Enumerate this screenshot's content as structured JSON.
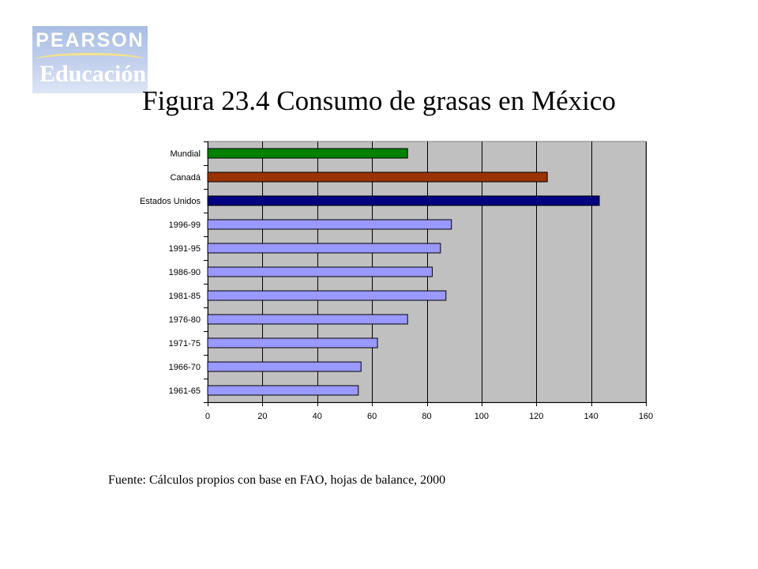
{
  "logo": {
    "brand": "PEARSON",
    "subbrand": "Educación"
  },
  "title": "Figura 23.4 Consumo de grasas en México",
  "source": "Fuente: Cálculos propios con base en FAO, hojas de balance, 2000",
  "chart_data": {
    "type": "bar",
    "orientation": "horizontal",
    "categories": [
      "Mundial",
      "Canadá",
      "Estados Unidos",
      "1996-99",
      "1991-95",
      "1986-90",
      "1981-85",
      "1976-80",
      "1971-75",
      "1966-70",
      "1961-65"
    ],
    "values": [
      73,
      124,
      143,
      89,
      85,
      82,
      87,
      73,
      62,
      56,
      55
    ],
    "bar_colors": [
      "#008000",
      "#993300",
      "#000080",
      "#9999ff",
      "#9999ff",
      "#9999ff",
      "#9999ff",
      "#9999ff",
      "#9999ff",
      "#9999ff",
      "#9999ff"
    ],
    "xlim": [
      0,
      160
    ],
    "xticks": [
      0,
      20,
      40,
      60,
      80,
      100,
      120,
      140,
      160
    ],
    "grid": "vertical",
    "plot_background": "#c0c0c0",
    "legend": "none"
  }
}
